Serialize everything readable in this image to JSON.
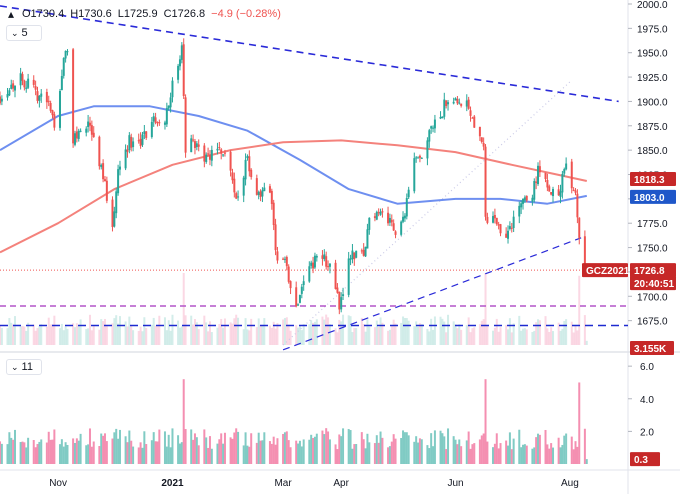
{
  "legend": {
    "open": "O1730.4",
    "high": "H1730.6",
    "low": "L1725.9",
    "close": "C1726.8",
    "change": "−4.9 (−0.28%)",
    "main_indicator_count": "5",
    "volume_indicator_count": "11"
  },
  "colors": {
    "up": "#26a69a",
    "down": "#ef5350",
    "up_volume": "#80cbc4",
    "down_volume": "#f48fb1",
    "sma_short": "#6e8ff0",
    "sma_long": "#f4827c",
    "trendline": "#2a2ad8",
    "support": "#1e2ad0",
    "magenta": "#b355c9",
    "price_tag": "#c62828",
    "short_tag": "#c62828",
    "sma_short_tag": "#1f57c9"
  },
  "labels": {
    "symbol_tag": "GCZ2021",
    "price_tag": "1726.8",
    "countdown_tag": "20:40:51",
    "sma_long_tag": "1818.3",
    "sma_short_tag": "1803.0",
    "bottom_tag": "3.155K",
    "volume_tag": "0.3"
  },
  "chart_data": [
    {
      "type": "candlestick",
      "y_ticks": [
        "2000.0",
        "1975.0",
        "1950.0",
        "1925.0",
        "1900.0",
        "1875.0",
        "1850.0",
        "1825.0",
        "1800.0",
        "1775.0",
        "1750.0",
        "1725.0",
        "1700.0",
        "1675.0"
      ],
      "ylim": [
        1650,
        2000
      ],
      "x_ticks": [
        "Nov",
        "2021",
        "Mar",
        "Apr",
        "Jun",
        "Aug"
      ],
      "xlim": [
        "2020-10-01",
        "2021-09-01"
      ],
      "price_path": [
        [
          "2020-10-01",
          1905
        ],
        [
          "2020-10-06",
          1915
        ],
        [
          "2020-10-12",
          1925
        ],
        [
          "2020-10-19",
          1910
        ],
        [
          "2020-10-26",
          1900
        ],
        [
          "2020-10-30",
          1880
        ],
        [
          "2020-11-04",
          1940
        ],
        [
          "2020-11-06",
          1955
        ],
        [
          "2020-11-09",
          1860
        ],
        [
          "2020-11-12",
          1870
        ],
        [
          "2020-11-18",
          1875
        ],
        [
          "2020-11-23",
          1840
        ],
        [
          "2020-11-30",
          1775
        ],
        [
          "2020-12-03",
          1830
        ],
        [
          "2020-12-09",
          1860
        ],
        [
          "2020-12-15",
          1855
        ],
        [
          "2020-12-21",
          1880
        ],
        [
          "2020-12-28",
          1885
        ],
        [
          "2021-01-06",
          1955
        ],
        [
          "2021-01-08",
          1850
        ],
        [
          "2021-01-12",
          1860
        ],
        [
          "2021-01-19",
          1840
        ],
        [
          "2021-01-26",
          1855
        ],
        [
          "2021-02-01",
          1835
        ],
        [
          "2021-02-04",
          1800
        ],
        [
          "2021-02-10",
          1840
        ],
        [
          "2021-02-16",
          1800
        ],
        [
          "2021-02-22",
          1810
        ],
        [
          "2021-02-26",
          1735
        ],
        [
          "2021-03-02",
          1735
        ],
        [
          "2021-03-08",
          1690
        ],
        [
          "2021-03-12",
          1720
        ],
        [
          "2021-03-17",
          1735
        ],
        [
          "2021-03-22",
          1740
        ],
        [
          "2021-03-26",
          1730
        ],
        [
          "2021-03-31",
          1690
        ],
        [
          "2021-04-06",
          1745
        ],
        [
          "2021-04-13",
          1740
        ],
        [
          "2021-04-16",
          1780
        ],
        [
          "2021-04-22",
          1790
        ],
        [
          "2021-04-27",
          1775
        ],
        [
          "2021-04-30",
          1770
        ],
        [
          "2021-05-05",
          1785
        ],
        [
          "2021-05-10",
          1835
        ],
        [
          "2021-05-14",
          1840
        ],
        [
          "2021-05-19",
          1870
        ],
        [
          "2021-05-24",
          1885
        ],
        [
          "2021-05-28",
          1905
        ],
        [
          "2021-06-02",
          1905
        ],
        [
          "2021-06-08",
          1895
        ],
        [
          "2021-06-11",
          1880
        ],
        [
          "2021-06-16",
          1860
        ],
        [
          "2021-06-17",
          1775
        ],
        [
          "2021-06-22",
          1780
        ],
        [
          "2021-06-28",
          1760
        ],
        [
          "2021-07-01",
          1775
        ],
        [
          "2021-07-07",
          1800
        ],
        [
          "2021-07-12",
          1805
        ],
        [
          "2021-07-15",
          1830
        ],
        [
          "2021-07-20",
          1810
        ],
        [
          "2021-07-26",
          1800
        ],
        [
          "2021-07-29",
          1835
        ],
        [
          "2021-08-02",
          1815
        ],
        [
          "2021-08-04",
          1810
        ],
        [
          "2021-08-06",
          1765
        ],
        [
          "2021-08-09",
          1730
        ],
        [
          "2021-08-10",
          1726.8
        ]
      ],
      "series": [
        {
          "kind": "moving_average_short",
          "points": [
            [
              "2020-10-01",
              1850
            ],
            [
              "2020-11-01",
              1885
            ],
            [
              "2020-11-20",
              1895
            ],
            [
              "2020-12-20",
              1895
            ],
            [
              "2021-01-15",
              1885
            ],
            [
              "2021-02-10",
              1870
            ],
            [
              "2021-03-10",
              1840
            ],
            [
              "2021-04-05",
              1810
            ],
            [
              "2021-05-01",
              1795
            ],
            [
              "2021-06-01",
              1800
            ],
            [
              "2021-06-25",
              1800
            ],
            [
              "2021-07-20",
              1795
            ],
            [
              "2021-08-10",
              1803.0
            ]
          ]
        },
        {
          "kind": "moving_average_long",
          "points": [
            [
              "2020-10-01",
              1745
            ],
            [
              "2020-11-01",
              1775
            ],
            [
              "2020-12-01",
              1810
            ],
            [
              "2021-01-01",
              1835
            ],
            [
              "2021-02-01",
              1850
            ],
            [
              "2021-03-01",
              1858
            ],
            [
              "2021-04-01",
              1860
            ],
            [
              "2021-05-01",
              1855
            ],
            [
              "2021-06-01",
              1848
            ],
            [
              "2021-07-01",
              1835
            ],
            [
              "2021-07-25",
              1825
            ],
            [
              "2021-08-10",
              1818.3
            ]
          ]
        }
      ],
      "lines": [
        {
          "kind": "descending_trendline",
          "style": "dashed",
          "from": [
            "2020-10-01",
            1998
          ],
          "to": [
            "2021-08-27",
            1900
          ]
        },
        {
          "kind": "ascending_trendline",
          "style": "dashed",
          "from": [
            "2021-03-01",
            1645
          ],
          "to": [
            "2021-08-07",
            1760
          ]
        },
        {
          "kind": "ascending_trendline_extension",
          "style": "dotted",
          "from": [
            "2021-03-01",
            1650
          ],
          "to": [
            "2021-08-01",
            1920
          ]
        },
        {
          "kind": "horizontal_level",
          "style": "dashed",
          "value": 1690
        },
        {
          "kind": "horizontal_level",
          "style": "dashed",
          "value": 1670
        },
        {
          "kind": "horizontal_level",
          "style": "dotted",
          "value": 1726.8
        }
      ],
      "last_price": 1726.8
    },
    {
      "type": "bar",
      "name": "Volume",
      "y_ticks": [
        "6.0",
        "4.0",
        "2.0"
      ],
      "ylim": [
        0,
        6.5
      ],
      "spikes": [
        [
          "2020-11-07",
          6.0
        ],
        [
          "2021-01-07",
          5.2
        ],
        [
          "2021-06-17",
          5.2
        ],
        [
          "2021-08-06",
          5.0
        ]
      ],
      "last_value": 0.3
    }
  ]
}
